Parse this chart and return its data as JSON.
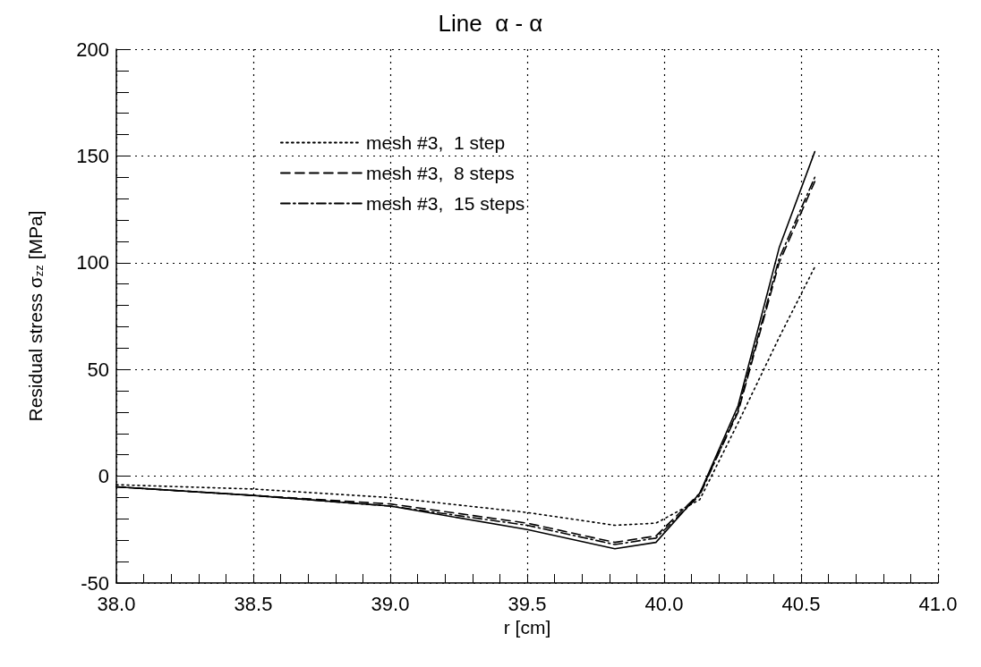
{
  "chart_data": {
    "type": "line",
    "title": "Line  α - α",
    "xlabel": "r [cm]",
    "ylabel": "Residual stress σ$_{zz}$ [MPa]",
    "xlim": [
      38,
      41
    ],
    "xticks": [
      {
        "value": 38,
        "label": "38.0"
      },
      {
        "value": 38.5,
        "label": "38.5"
      },
      {
        "value": 39,
        "label": "39.0"
      },
      {
        "value": 39.5,
        "label": "39.5"
      },
      {
        "value": 40,
        "label": "40.0"
      },
      {
        "value": 40.5,
        "label": "40.5"
      },
      {
        "value": 41,
        "label": "41.0"
      }
    ],
    "ylim": [
      -50,
      200
    ],
    "yticks": [
      -50,
      0,
      50,
      100,
      150,
      200
    ],
    "grid": true,
    "legend": "top left",
    "marker": "none",
    "x": [
      38.0,
      38.5,
      39.0,
      39.5,
      39.82,
      39.97,
      40.13,
      40.27,
      40.42,
      40.55
    ],
    "series": [
      {
        "color": "#000000",
        "line_style": "solid",
        "values": [
          -5,
          -9,
          -14,
          -25,
          -34,
          -31,
          -8,
          33,
          107,
          152
        ]
      },
      {
        "name": "mesh #3,  1 step",
        "color": "#000000",
        "line_style": "dotted",
        "values": [
          -4,
          -6,
          -10,
          -17,
          -23,
          -22,
          -11,
          25,
          65,
          98
        ]
      },
      {
        "name": "mesh #3,  8 steps",
        "color": "#000000",
        "line_style": "dashed",
        "values": [
          -5,
          -9,
          -13,
          -22,
          -31,
          -28,
          -8,
          30,
          100,
          138
        ]
      },
      {
        "name": "mesh #3,  15 steps",
        "color": "#000000",
        "line_style": "dashdot",
        "values": [
          -5,
          -9,
          -14,
          -23,
          -32,
          -29,
          -9,
          31,
          102,
          140
        ]
      }
    ]
  }
}
